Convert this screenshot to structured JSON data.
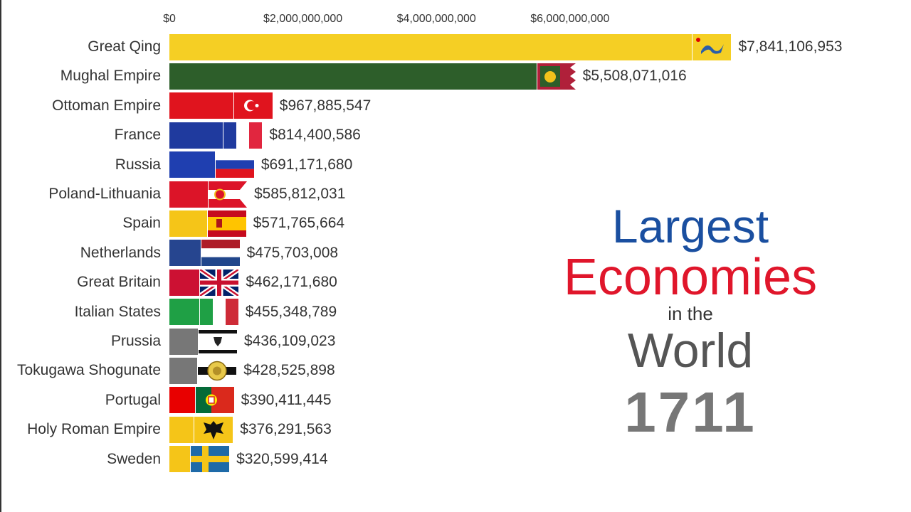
{
  "chart_data": {
    "type": "bar",
    "orientation": "horizontal",
    "title": "",
    "xlim": [
      0,
      8000000000
    ],
    "x_ticks": [
      "$0",
      "$2,000,000,000",
      "$4,000,000,000",
      "$6,000,000,000"
    ],
    "x_tick_values": [
      0,
      2000000000,
      4000000000,
      6000000000
    ],
    "categories": [
      "Great Qing",
      "Mughal Empire",
      "Ottoman Empire",
      "France",
      "Russia",
      "Poland-Lithuania",
      "Spain",
      "Netherlands",
      "Great Britain",
      "Italian States",
      "Prussia",
      "Tokugawa Shogunate",
      "Portugal",
      "Holy Roman Empire",
      "Sweden"
    ],
    "values": [
      7841106953,
      5508071016,
      967885547,
      814400586,
      691171680,
      585812031,
      571765664,
      475703008,
      462171680,
      455348789,
      436109023,
      428525898,
      390411445,
      376291563,
      320599414
    ],
    "value_labels": [
      "$7,841,106,953",
      "$5,508,071,016",
      "$967,885,547",
      "$814,400,586",
      "$691,171,680",
      "$585,812,031",
      "$571,765,664",
      "$475,703,008",
      "$462,171,680",
      "$455,348,789",
      "$436,109,023",
      "$428,525,898",
      "$390,411,445",
      "$376,291,563",
      "$320,599,414"
    ],
    "colors": [
      "#f5cf24",
      "#2d5e2a",
      "#e0141e",
      "#1f3a9e",
      "#1f3fb0",
      "#dc1428",
      "#f5c518",
      "#26458f",
      "#cc1133",
      "#1fa045",
      "#777777",
      "#777777",
      "#e80000",
      "#f5c518",
      "#f5c518"
    ],
    "flags": [
      "qing-dragon-flag",
      "mughal-flag",
      "ottoman-flag",
      "france-flag",
      "russia-flag",
      "poland-lithuania-flag",
      "spain-flag",
      "netherlands-flag",
      "great-britain-flag",
      "italy-flag",
      "prussia-flag",
      "tokugawa-flag",
      "portugal-flag",
      "holy-roman-empire-flag",
      "sweden-flag"
    ],
    "grid": false,
    "legend": "none"
  },
  "title": {
    "line1": "Largest",
    "line2": "Economies",
    "line3": "in the",
    "line4": "World",
    "year": "1711"
  }
}
